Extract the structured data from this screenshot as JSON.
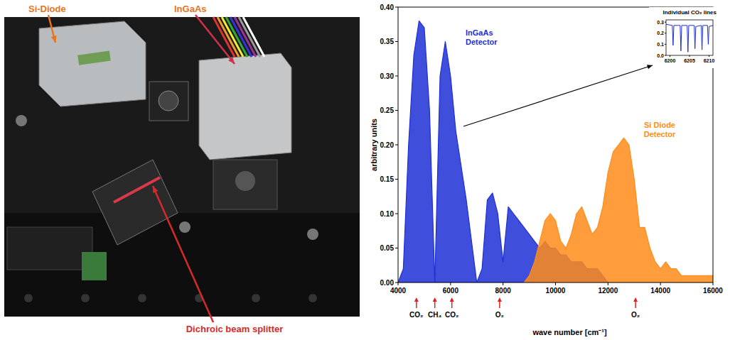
{
  "photo": {
    "labels": [
      "Si-Diode",
      "InGaAs",
      "Dichroic beam splitter"
    ]
  },
  "chart_data": [
    {
      "type": "area",
      "x_label": "wave number [cm⁻¹]",
      "y_label": "arbitrary units",
      "xlim": [
        4000,
        16000
      ],
      "xticks": [
        4000,
        6000,
        8000,
        10000,
        12000,
        14000,
        16000
      ],
      "ylim": [
        0,
        0.4
      ],
      "yticks": [
        {
          "value": 0,
          "label": "0.00"
        },
        {
          "value": 0.05,
          "label": "0.05"
        },
        {
          "value": 0.1,
          "label": "0.10"
        },
        {
          "value": 0.15,
          "label": "0.15"
        },
        {
          "value": 0.2,
          "label": "0.20"
        },
        {
          "value": 0.25,
          "label": "0.25"
        },
        {
          "value": 0.3,
          "label": "0.30"
        },
        {
          "value": 0.35,
          "label": "0.35"
        },
        {
          "value": 0.4,
          "label": "0.40"
        }
      ],
      "grid": false,
      "series": [
        {
          "name": "InGaAs Detector",
          "color": "#1f2fd6",
          "x": [
            4000,
            4200,
            4400,
            4600,
            4800,
            5000,
            5200,
            5400,
            5600,
            5800,
            6000,
            6200,
            6400,
            6600,
            6800,
            7000,
            7200,
            7400,
            7600,
            7800,
            8000,
            8200,
            8400,
            8600,
            8800,
            9000,
            9200,
            9400,
            9600,
            9800,
            10000,
            10200,
            10400,
            10600,
            10800,
            11000,
            11200,
            11400,
            11600,
            11800,
            12000
          ],
          "values": [
            0.0,
            0.02,
            0.2,
            0.33,
            0.38,
            0.37,
            0.25,
            0.0,
            0.3,
            0.35,
            0.3,
            0.22,
            0.17,
            0.12,
            0.06,
            0.0,
            0.02,
            0.12,
            0.13,
            0.1,
            0.03,
            0.11,
            0.1,
            0.09,
            0.08,
            0.07,
            0.06,
            0.05,
            0.06,
            0.05,
            0.05,
            0.04,
            0.04,
            0.03,
            0.03,
            0.03,
            0.02,
            0.02,
            0.02,
            0.01,
            0.0
          ]
        },
        {
          "name": "Si Diode Detector",
          "color": "#ff8c1a",
          "x": [
            8800,
            9000,
            9200,
            9400,
            9600,
            9800,
            10000,
            10200,
            10400,
            10600,
            10800,
            11000,
            11200,
            11400,
            11600,
            11800,
            12000,
            12200,
            12400,
            12600,
            12800,
            13000,
            13200,
            13400,
            13600,
            13800,
            14000,
            14200,
            14400,
            14600,
            14800,
            15000,
            15200,
            15400,
            15600,
            15800,
            16000
          ],
          "values": [
            0.0,
            0.01,
            0.03,
            0.06,
            0.09,
            0.1,
            0.09,
            0.06,
            0.05,
            0.07,
            0.1,
            0.11,
            0.09,
            0.07,
            0.08,
            0.11,
            0.16,
            0.19,
            0.2,
            0.21,
            0.2,
            0.15,
            0.08,
            0.08,
            0.05,
            0.03,
            0.02,
            0.03,
            0.02,
            0.02,
            0.01,
            0.01,
            0.01,
            0.01,
            0.01,
            0.01,
            0.01
          ]
        }
      ],
      "annotations": [
        {
          "text": "CO₂",
          "x": 4700
        },
        {
          "text": "CH₄",
          "x": 5400
        },
        {
          "text": "CO₂",
          "x": 6050
        },
        {
          "text": "O₂",
          "x": 7870
        },
        {
          "text": "O₂",
          "x": 13050
        }
      ]
    },
    {
      "type": "line",
      "title": "Individual CO₂ lines",
      "color": "#1f2fd6",
      "xlim": [
        6199,
        6211
      ],
      "xticks": [
        6200,
        6205,
        6210
      ],
      "ylim": [
        0,
        0.32
      ],
      "yticks": [
        {
          "value": 0,
          "label": "0.0"
        },
        {
          "value": 0.1,
          "label": "0.1"
        },
        {
          "value": 0.2,
          "label": "0.2"
        },
        {
          "value": 0.3,
          "label": "0.3"
        }
      ],
      "x": [
        6199,
        6200.6,
        6200.8,
        6201,
        6202.6,
        6202.8,
        6203,
        6204.4,
        6204.6,
        6204.8,
        6206.2,
        6206.4,
        6206.6,
        6208,
        6208.2,
        6208.4,
        6209.6,
        6209.8,
        6210,
        6211
      ],
      "values": [
        0.28,
        0.27,
        0.09,
        0.27,
        0.27,
        0.04,
        0.27,
        0.27,
        0.03,
        0.27,
        0.27,
        0.06,
        0.26,
        0.27,
        0.05,
        0.27,
        0.27,
        0.1,
        0.26,
        0.27
      ]
    }
  ]
}
